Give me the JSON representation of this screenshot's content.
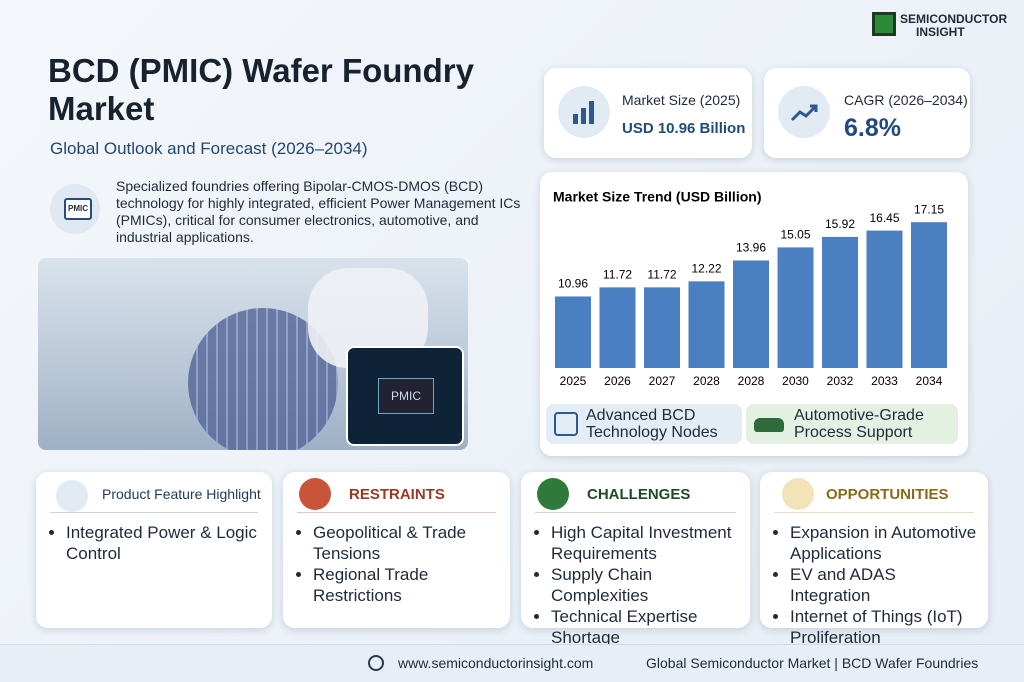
{
  "brand": {
    "line1": "SEMICONDUCTOR",
    "line2": "INSIGHT"
  },
  "header": {
    "title": "BCD (PMIC) Wafer Foundry Market",
    "subtitle": "Global Outlook and Forecast (2026–2034)",
    "icon_label": "PMIC",
    "description": "Specialized foundries offering Bipolar-CMOS-DMOS (BCD) technology for highly integrated, efficient Power Management ICs (PMICs), critical for consumer electronics, automotive, and industrial applications."
  },
  "image": {
    "chip_label": "PMIC"
  },
  "stats": [
    {
      "label": "Market Size (2025)",
      "value": "USD 10.96 Billion"
    },
    {
      "label": "CAGR (2026–2034)",
      "value": "6.8%"
    }
  ],
  "chart_data": {
    "type": "bar",
    "title": "Market Size Trend (USD Billion)",
    "categories": [
      "2025",
      "2026",
      "2027",
      "2028",
      "2028",
      "2030",
      "2032",
      "2033",
      "2034"
    ],
    "values": [
      10.96,
      11.72,
      11.72,
      12.22,
      13.96,
      15.05,
      15.92,
      16.45,
      17.15
    ],
    "color": "#4a7fc1",
    "ylim": [
      5,
      18
    ]
  },
  "badges": [
    "Advanced BCD Technology Nodes",
    "Automotive-Grade Process Support"
  ],
  "panels": [
    {
      "title": "Product Feature Highlight",
      "items": [
        "Integrated Power & Logic Control"
      ]
    },
    {
      "title": "RESTRAINTS",
      "items": [
        "Geopolitical & Trade Tensions",
        "Regional Trade Restrictions"
      ]
    },
    {
      "title": "CHALLENGES",
      "items": [
        "High Capital Investment Requirements",
        "Supply Chain Complexities",
        "Technical Expertise Shortage"
      ]
    },
    {
      "title": "OPPORTUNITIES",
      "items": [
        "Expansion in Automotive Applications",
        "EV and ADAS Integration",
        "Internet of Things (IoT) Proliferation"
      ]
    }
  ],
  "footer": {
    "website": "www.semiconductorinsight.com",
    "tagline": "Global Semiconductor Market | BCD Wafer Foundries"
  }
}
